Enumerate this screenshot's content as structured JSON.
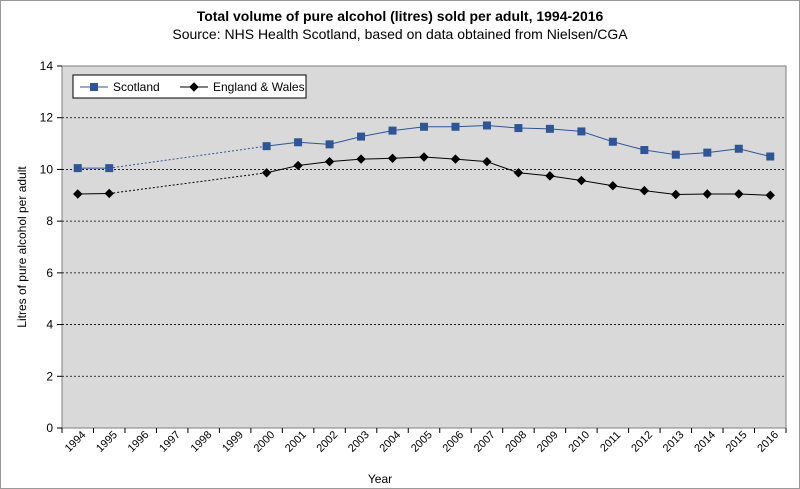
{
  "chart_data": {
    "type": "line",
    "title": "Total volume of pure alcohol (litres) sold per adult, 1994-2016",
    "subtitle": "Source: NHS Health Scotland, based on data obtained from Nielsen/CGA",
    "xlabel": "Year",
    "ylabel": "Litres of pure alcohol per adult",
    "ylim": [
      0,
      14
    ],
    "yticks": [
      "0",
      "2",
      "4",
      "6",
      "8",
      "10",
      "12",
      "14"
    ],
    "categories": [
      "1994",
      "1995",
      "1996",
      "1997",
      "1998",
      "1999",
      "2000",
      "2001",
      "2002",
      "2003",
      "2004",
      "2005",
      "2006",
      "2007",
      "2008",
      "2009",
      "2010",
      "2011",
      "2012",
      "2013",
      "2014",
      "2015",
      "2016"
    ],
    "grid": "horizontal dashed",
    "legend_position": "top-left",
    "series": [
      {
        "name": "Scotland",
        "color": "#2f5597",
        "marker": "square",
        "x": [
          "1994",
          "1995",
          "2000",
          "2001",
          "2002",
          "2003",
          "2004",
          "2005",
          "2006",
          "2007",
          "2008",
          "2009",
          "2010",
          "2011",
          "2012",
          "2013",
          "2014",
          "2015",
          "2016"
        ],
        "values": [
          10.05,
          10.05,
          10.9,
          11.05,
          10.97,
          11.27,
          11.5,
          11.65,
          11.65,
          11.7,
          11.6,
          11.57,
          11.47,
          11.07,
          10.75,
          10.57,
          10.65,
          10.8,
          10.5
        ]
      },
      {
        "name": "England & Wales",
        "color": "#000000",
        "marker": "diamond",
        "x": [
          "1994",
          "1995",
          "2000",
          "2001",
          "2002",
          "2003",
          "2004",
          "2005",
          "2006",
          "2007",
          "2008",
          "2009",
          "2010",
          "2011",
          "2012",
          "2013",
          "2014",
          "2015",
          "2016"
        ],
        "values": [
          9.05,
          9.07,
          9.87,
          10.15,
          10.3,
          10.4,
          10.43,
          10.48,
          10.4,
          10.3,
          9.87,
          9.75,
          9.57,
          9.37,
          9.18,
          9.03,
          9.05,
          9.05,
          9.0
        ]
      }
    ]
  }
}
